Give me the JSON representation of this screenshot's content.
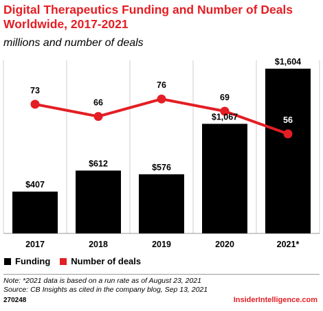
{
  "header": {
    "title": "Digital Therapeutics Funding and Number of Deals\nWorldwide, 2017-2021",
    "subtitle": "millions and number of deals"
  },
  "colors": {
    "funding": "#000000",
    "deals": "#e31e24",
    "title": "#e31e24",
    "grid": "#cccccc"
  },
  "chart_data": {
    "type": "bar",
    "categories": [
      "2017",
      "2018",
      "2019",
      "2020",
      "2021*"
    ],
    "series": [
      {
        "name": "Funding",
        "type": "bar",
        "values": [
          407,
          612,
          576,
          1067,
          1604
        ],
        "labels": [
          "$407",
          "$612",
          "$576",
          "$1,067",
          "$1,604"
        ]
      },
      {
        "name": "Number of deals",
        "type": "line",
        "values": [
          73,
          66,
          76,
          69,
          56
        ],
        "labels": [
          "73",
          "66",
          "76",
          "69",
          "56"
        ]
      }
    ],
    "legend_position": "bottom-left",
    "grid": false
  },
  "legend": {
    "funding_label": "Funding",
    "deals_label": "Number of deals"
  },
  "notes": {
    "note": "Note: *2021 data is based on a run rate as of August 23, 2021",
    "source": "Source: CB Insights as cited in the company blog, Sep 13, 2021"
  },
  "footer": {
    "chart_id": "270248",
    "brand": "InsiderIntelligence.com"
  }
}
